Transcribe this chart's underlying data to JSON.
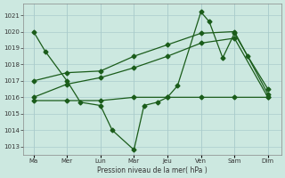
{
  "xlabel": "Pression niveau de la mer( hPa )",
  "bg_color": "#cce8e0",
  "grid_color": "#aacccc",
  "line_color": "#1a5c1a",
  "ylim": [
    1012.5,
    1021.7
  ],
  "yticks": [
    1013,
    1014,
    1015,
    1016,
    1017,
    1018,
    1019,
    1020,
    1021
  ],
  "x_labels": [
    "Ma",
    "Mer",
    "Lun",
    "Mar",
    "Jeu",
    "Ven",
    "Sam",
    "Dim"
  ],
  "x_positions": [
    0,
    1,
    2,
    3,
    4,
    5,
    6,
    7
  ],
  "line_width": 0.9,
  "marker_size": 2.5,
  "line_zigzag_x": [
    0,
    0.35,
    1,
    1.4,
    2,
    2.35,
    3,
    3.3,
    3.7,
    4,
    4.3,
    5,
    5.25,
    5.65,
    6,
    6.4,
    7
  ],
  "line_zigzag_y": [
    1020.0,
    1018.8,
    1017.0,
    1015.7,
    1015.5,
    1014.0,
    1012.8,
    1015.5,
    1015.7,
    1016.0,
    1016.7,
    1021.2,
    1020.6,
    1018.4,
    1019.9,
    1018.5,
    1016.5
  ],
  "line_upper_x": [
    0,
    1,
    2,
    3,
    4,
    5,
    6,
    7
  ],
  "line_upper_y": [
    1017.0,
    1017.5,
    1017.6,
    1018.5,
    1019.2,
    1019.9,
    1020.0,
    1016.2
  ],
  "line_lower_x": [
    0,
    1,
    2,
    3,
    4,
    5,
    6,
    7
  ],
  "line_lower_y": [
    1016.0,
    1016.8,
    1017.2,
    1017.8,
    1018.5,
    1019.3,
    1019.6,
    1016.0
  ],
  "line_flat_x": [
    0,
    1,
    2,
    3,
    4,
    5,
    6,
    7
  ],
  "line_flat_y": [
    1015.8,
    1015.8,
    1015.8,
    1016.0,
    1016.0,
    1016.0,
    1016.0,
    1016.0
  ]
}
